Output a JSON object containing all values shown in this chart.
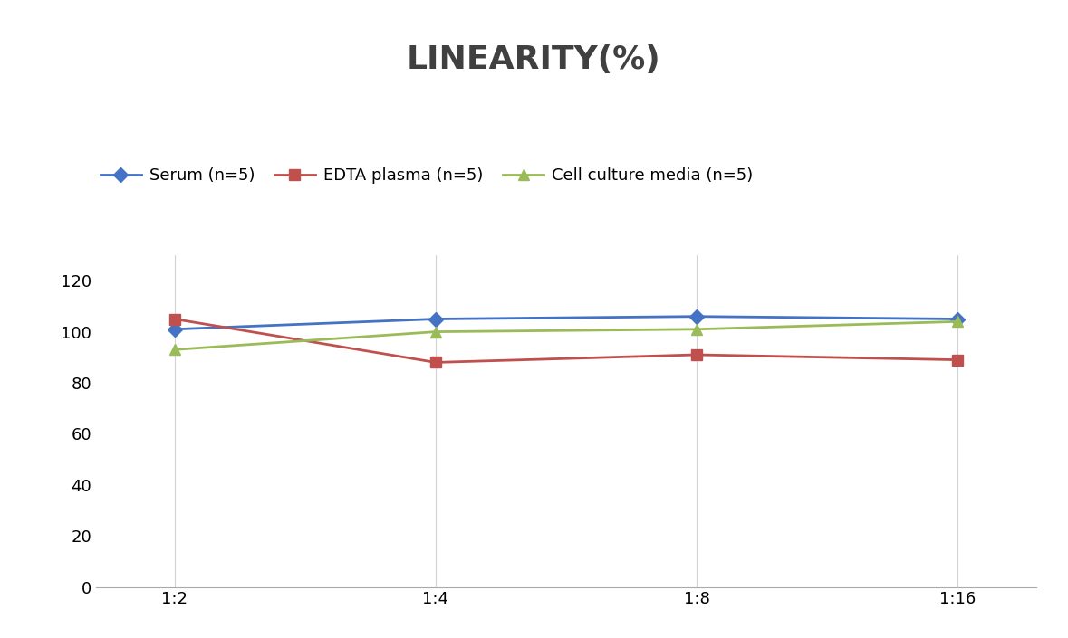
{
  "title": "LINEARITY(%)",
  "x_labels": [
    "1:2",
    "1:4",
    "1:8",
    "1:16"
  ],
  "x_positions": [
    0,
    1,
    2,
    3
  ],
  "series": [
    {
      "name": "Serum (n=5)",
      "values": [
        101,
        105,
        106,
        105
      ],
      "color": "#4472C4",
      "marker": "D",
      "linewidth": 2,
      "markersize": 8
    },
    {
      "name": "EDTA plasma (n=5)",
      "values": [
        105,
        88,
        91,
        89
      ],
      "color": "#C0504D",
      "marker": "s",
      "linewidth": 2,
      "markersize": 8
    },
    {
      "name": "Cell culture media (n=5)",
      "values": [
        93,
        100,
        101,
        104
      ],
      "color": "#9BBB59",
      "marker": "^",
      "linewidth": 2,
      "markersize": 8
    }
  ],
  "ylim": [
    0,
    130
  ],
  "yticks": [
    0,
    20,
    40,
    60,
    80,
    100,
    120
  ],
  "background_color": "#ffffff",
  "grid_color": "#d3d3d3",
  "title_fontsize": 26,
  "legend_fontsize": 13,
  "tick_fontsize": 13
}
